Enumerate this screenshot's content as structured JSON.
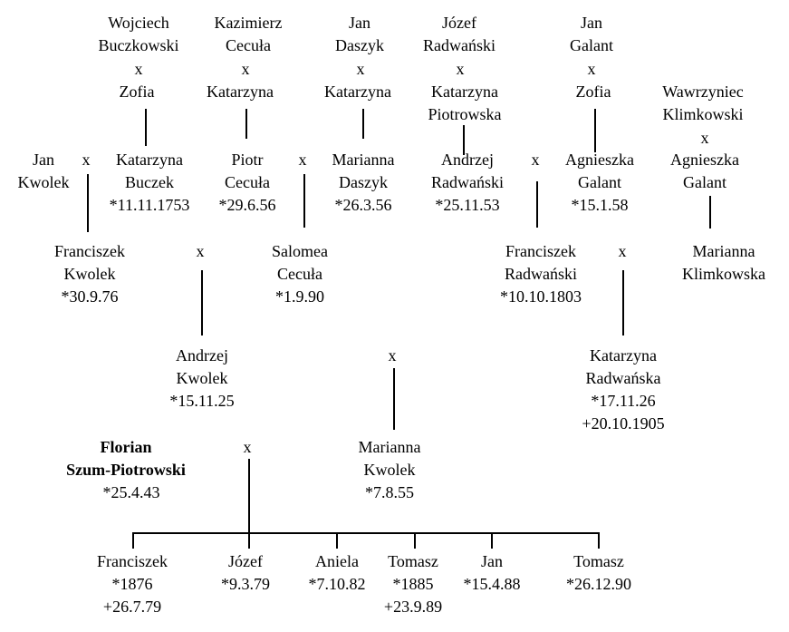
{
  "persons": {
    "wojciech_buczkowski": [
      "Wojciech",
      "Buczkowski"
    ],
    "zofia_1": [
      "Zofia"
    ],
    "kazimierz_cecula": [
      "Kazimierz",
      "Cecuła"
    ],
    "katarzyna_1": [
      "Katarzyna"
    ],
    "jan_daszyk": [
      "Jan",
      "Daszyk"
    ],
    "katarzyna_2": [
      "Katarzyna"
    ],
    "jozef_radwanski": [
      "Józef",
      "Radwański"
    ],
    "katarzyna_piotrowska": [
      "Katarzyna",
      "Piotrowska"
    ],
    "jan_galant": [
      "Jan",
      "Galant"
    ],
    "zofia_2": [
      "Zofia"
    ],
    "wawrzyniec_klimkowski": [
      "Wawrzyniec",
      "Klimkowski"
    ],
    "agnieszka_galant_2": [
      "Agnieszka",
      "Galant"
    ],
    "jan_kwolek": [
      "Jan",
      "Kwolek"
    ],
    "katarzyna_buczek": [
      "Katarzyna",
      "Buczek",
      "*11.11.1753"
    ],
    "piotr_cecula": [
      "Piotr",
      "Cecuła",
      "*29.6.56"
    ],
    "marianna_daszyk": [
      "Marianna",
      "Daszyk",
      "*26.3.56"
    ],
    "andrzej_radwanski": [
      "Andrzej",
      "Radwański",
      "*25.11.53"
    ],
    "agnieszka_galant": [
      "Agnieszka",
      "Galant",
      "*15.1.58"
    ],
    "franciszek_kwolek": [
      "Franciszek",
      "Kwolek",
      "*30.9.76"
    ],
    "salomea_cecula": [
      "Salomea",
      "Cecuła",
      "*1.9.90"
    ],
    "franciszek_radwanski": [
      "Franciszek",
      "Radwański",
      "*10.10.1803"
    ],
    "marianna_klimkowska": [
      "Marianna",
      "Klimkowska"
    ],
    "andrzej_kwolek": [
      "Andrzej",
      "Kwolek",
      "*15.11.25"
    ],
    "katarzyna_radwanska": [
      "Katarzyna",
      "Radwańska",
      "*17.11.26",
      "+20.10.1905"
    ],
    "florian_szum_piotrowski": [
      "Florian",
      "Szum-Piotrowski"
    ],
    "florian_birth": [
      "*25.4.43"
    ],
    "marianna_kwolek": [
      "Marianna",
      "Kwolek",
      "*7.8.55"
    ],
    "child_franciszek": [
      "Franciszek",
      "*1876",
      "+26.7.79"
    ],
    "child_jozef": [
      "Józef",
      "*9.3.79"
    ],
    "child_aniela": [
      "Aniela",
      "*7.10.82"
    ],
    "child_tomasz_1": [
      "Tomasz",
      "*1885",
      "+23.9.89"
    ],
    "child_jan": [
      "Jan",
      "*15.4.88"
    ],
    "child_tomasz_2": [
      "Tomasz",
      "*26.12.90"
    ]
  },
  "marriage_symbol": "x"
}
